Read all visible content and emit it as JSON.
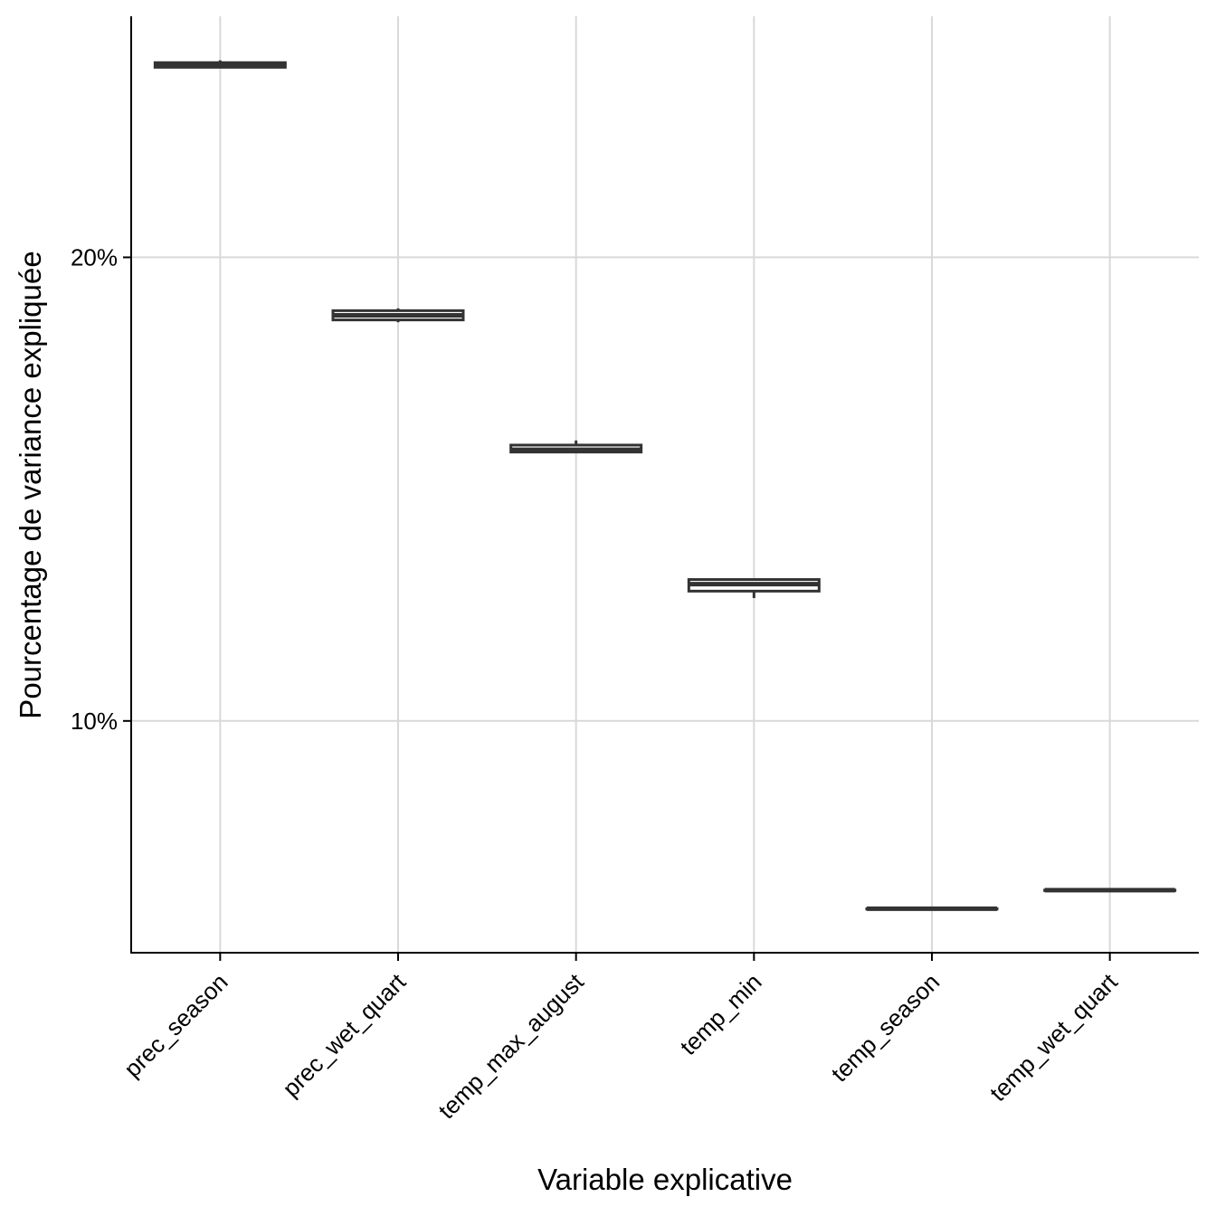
{
  "chart_data": {
    "type": "box",
    "xlabel": "Variable explicative",
    "ylabel": "Pourcentage de variance expliquée",
    "ylim": [
      5.0,
      25.2
    ],
    "yticks": [
      10,
      20
    ],
    "ytick_labels": [
      "10%",
      "20%"
    ],
    "grid": true,
    "categories": [
      "prec_season",
      "prec_wet_quart",
      "temp_max_august",
      "temp_min",
      "temp_season",
      "temp_wet_quart"
    ],
    "boxes": [
      {
        "category": "prec_season",
        "min": 24.1,
        "q1": 24.1,
        "median": 24.15,
        "q3": 24.2,
        "max": 24.25
      },
      {
        "category": "prec_wet_quart",
        "min": 18.6,
        "q1": 18.65,
        "median": 18.75,
        "q3": 18.85,
        "max": 18.9
      },
      {
        "category": "temp_max_august",
        "min": 15.8,
        "q1": 15.8,
        "median": 15.85,
        "q3": 15.95,
        "max": 16.05
      },
      {
        "category": "temp_min",
        "min": 12.65,
        "q1": 12.8,
        "median": 12.95,
        "q3": 13.05,
        "max": 13.05
      },
      {
        "category": "temp_season",
        "min": 5.95,
        "q1": 5.95,
        "median": 5.95,
        "q3": 5.95,
        "max": 5.95
      },
      {
        "category": "temp_wet_quart",
        "min": 6.35,
        "q1": 6.35,
        "median": 6.35,
        "q3": 6.35,
        "max": 6.35
      }
    ]
  }
}
